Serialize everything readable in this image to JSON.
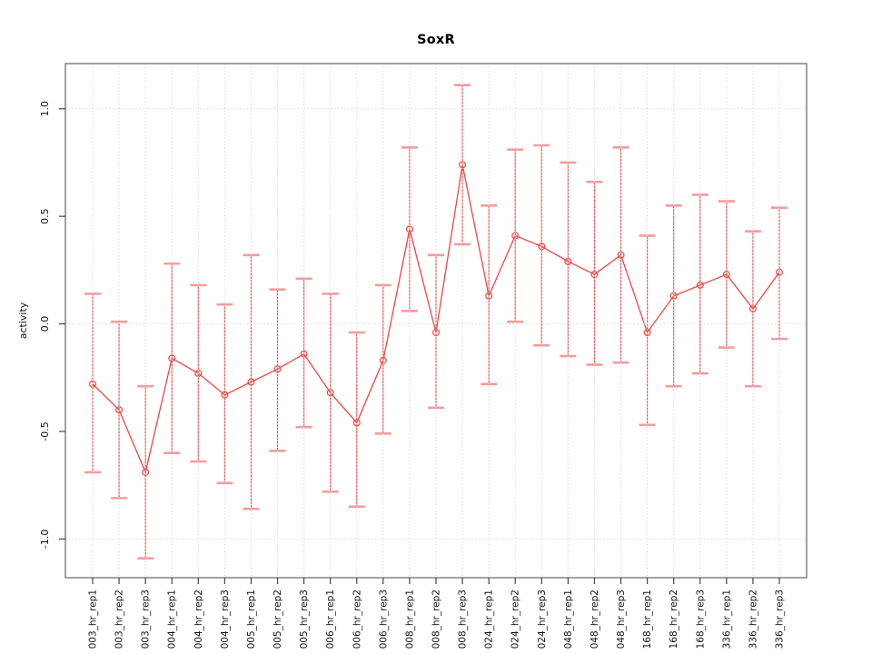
{
  "chart_data": {
    "type": "line",
    "title": "SoxR",
    "ylabel": "activity",
    "marker": "open-circle",
    "error_bars": true,
    "grid": true,
    "legend_position": "none",
    "categories": [
      "003_hr_rep1",
      "003_hr_rep2",
      "003_hr_rep3",
      "004_hr_rep1",
      "004_hr_rep2",
      "004_hr_rep3",
      "005_hr_rep1",
      "005_hr_rep2",
      "005_hr_rep3",
      "006_hr_rep1",
      "006_hr_rep2",
      "006_hr_rep3",
      "008_hr_rep1",
      "008_hr_rep2",
      "008_hr_rep3",
      "024_hr_rep1",
      "024_hr_rep2",
      "024_hr_rep3",
      "048_hr_rep1",
      "048_hr_rep2",
      "048_hr_rep3",
      "168_hr_rep1",
      "168_hr_rep2",
      "168_hr_rep3",
      "336_hr_rep1",
      "336_hr_rep2",
      "336_hr_rep3"
    ],
    "values": [
      -0.28,
      -0.4,
      -0.69,
      -0.16,
      -0.23,
      -0.33,
      -0.27,
      -0.21,
      -0.14,
      -0.32,
      -0.46,
      -0.17,
      0.44,
      -0.04,
      0.74,
      0.13,
      0.41,
      0.36,
      0.29,
      0.23,
      0.32,
      -0.04,
      0.13,
      0.18,
      0.23,
      0.07,
      0.24
    ],
    "error_high": [
      0.14,
      0.01,
      -0.29,
      0.28,
      0.18,
      0.09,
      0.32,
      0.16,
      0.21,
      0.14,
      -0.04,
      0.18,
      0.82,
      0.32,
      1.11,
      0.55,
      0.81,
      0.83,
      0.75,
      0.66,
      0.82,
      0.41,
      0.55,
      0.6,
      0.57,
      0.43,
      0.54
    ],
    "error_low": [
      -0.69,
      -0.81,
      -1.09,
      -0.6,
      -0.64,
      -0.74,
      -0.86,
      -0.59,
      -0.48,
      -0.78,
      -0.85,
      -0.51,
      0.06,
      -0.39,
      0.37,
      -0.28,
      0.01,
      -0.1,
      -0.15,
      -0.19,
      -0.18,
      -0.47,
      -0.29,
      -0.23,
      -0.11,
      -0.29,
      -0.07
    ],
    "ytick_labels": [
      "-1.0",
      "-0.5",
      "0.0",
      "0.5",
      "1.0"
    ],
    "ytick_values": [
      -1.0,
      -0.5,
      0.0,
      0.5,
      1.0
    ],
    "grid_y_values": [
      -1.0,
      0.0,
      1.0
    ],
    "ylim": [
      -1.18,
      1.21
    ],
    "colors": {
      "series": "#f04646",
      "error_cap": "#f59c9c",
      "grid": "#dcdcdc",
      "box": "#8a8a8a",
      "tick": "#444444",
      "text": "#111111",
      "background": "#ffffff"
    }
  }
}
